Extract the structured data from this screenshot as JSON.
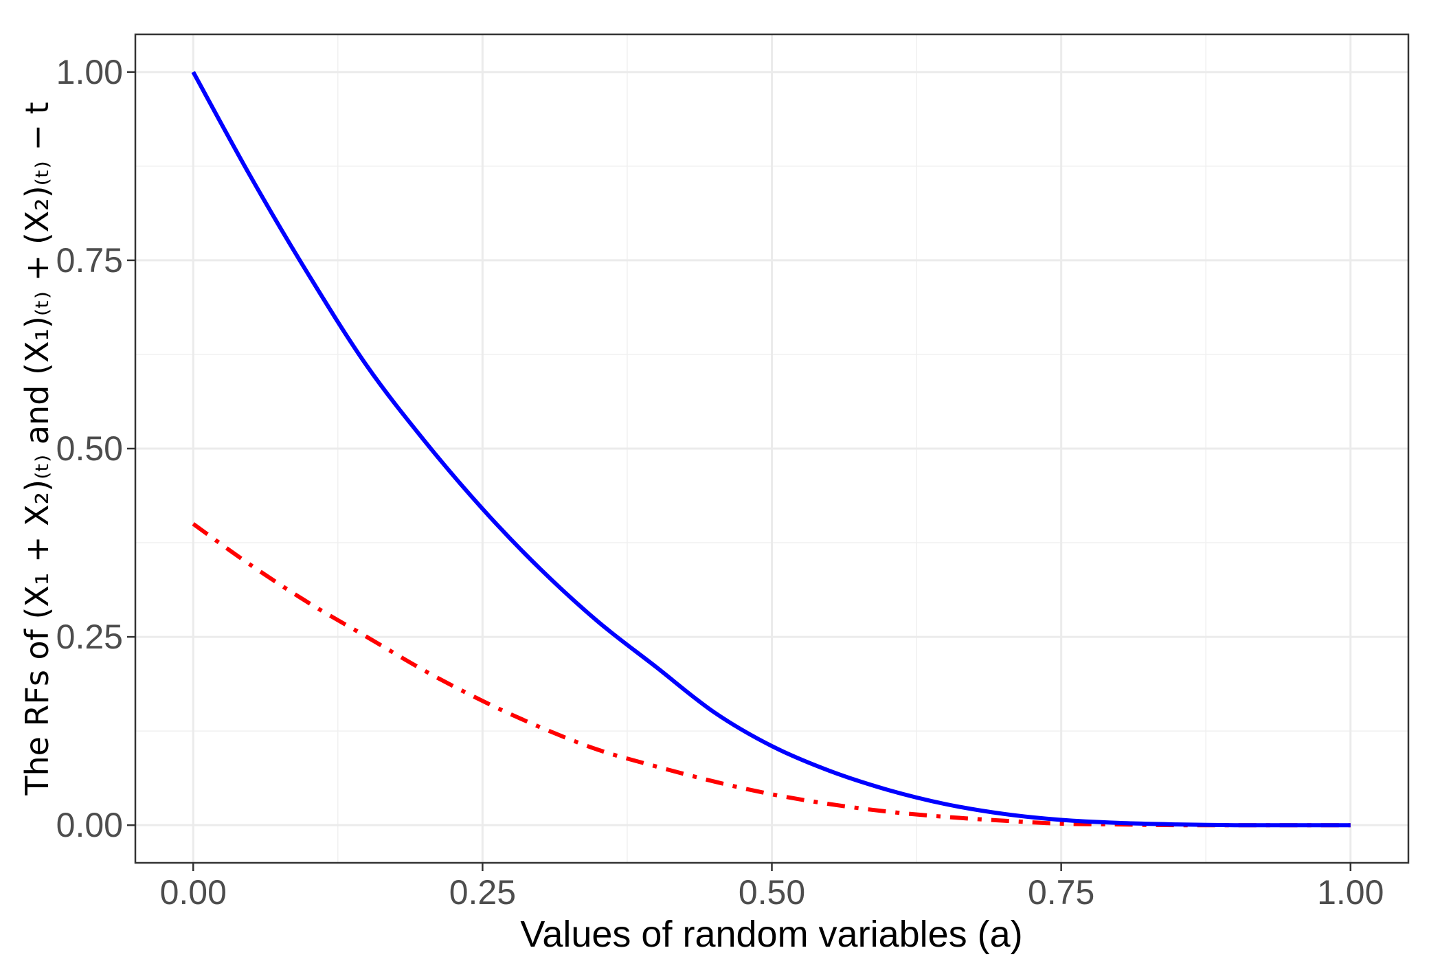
{
  "chart_data": {
    "type": "line",
    "title": "",
    "xlabel": "Values of random variables (a)",
    "ylabel": "The RFs of  (X₁ + X₂)₍ₜ₎ and (X₁)₍ₜ₎ + (X₂)₍ₜ₎ − t",
    "xlim": [
      -0.05,
      1.05
    ],
    "ylim": [
      -0.05,
      1.05
    ],
    "xticks": [
      0.0,
      0.25,
      0.5,
      0.75,
      1.0
    ],
    "xtick_labels": [
      "0.00",
      "0.25",
      "0.50",
      "0.75",
      "1.00"
    ],
    "yticks": [
      0.0,
      0.25,
      0.5,
      0.75,
      1.0
    ],
    "ytick_labels": [
      "0.00",
      "0.25",
      "0.50",
      "0.75",
      "1.00"
    ],
    "grid": true,
    "legend": "none",
    "series": [
      {
        "color": "#0000ff",
        "dash": "solid",
        "x": [
          0.0,
          0.05,
          0.1,
          0.15,
          0.2,
          0.25,
          0.3,
          0.35,
          0.4,
          0.45,
          0.5,
          0.55,
          0.6,
          0.65,
          0.7,
          0.75,
          0.8,
          0.85,
          0.9,
          0.95,
          1.0
        ],
        "y": [
          1.0,
          0.86,
          0.73,
          0.61,
          0.51,
          0.42,
          0.34,
          0.27,
          0.21,
          0.15,
          0.105,
          0.072,
          0.047,
          0.028,
          0.015,
          0.007,
          0.003,
          0.001,
          0.0,
          0.0,
          0.0
        ]
      },
      {
        "color": "#ff0000",
        "dash": "dotdash",
        "x": [
          0.0,
          0.05,
          0.1,
          0.15,
          0.2,
          0.25,
          0.3,
          0.35,
          0.4,
          0.45,
          0.5,
          0.55,
          0.6,
          0.65,
          0.7,
          0.75,
          0.8,
          0.85,
          0.9,
          0.95,
          1.0
        ],
        "y": [
          0.4,
          0.345,
          0.295,
          0.25,
          0.205,
          0.165,
          0.13,
          0.1,
          0.078,
          0.058,
          0.041,
          0.028,
          0.018,
          0.011,
          0.006,
          0.002,
          0.001,
          0.0,
          0.0,
          0.0,
          0.0
        ]
      }
    ]
  }
}
